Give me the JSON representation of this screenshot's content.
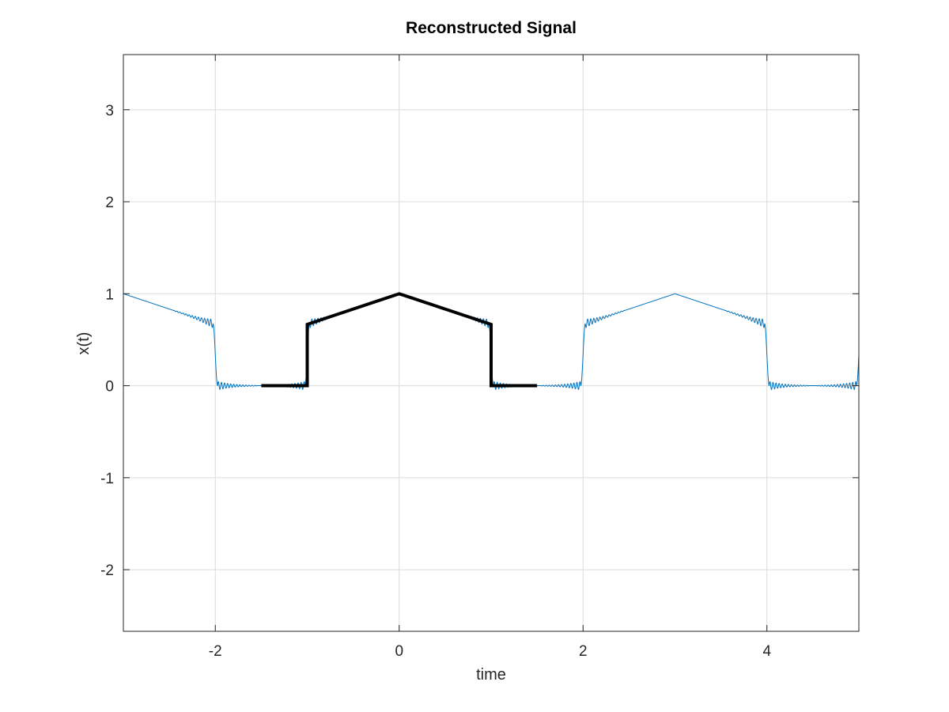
{
  "chart_data": {
    "type": "line",
    "title": "Reconstructed Signal",
    "xlabel": "time",
    "ylabel": "x(t)",
    "xlim": [
      -3,
      5
    ],
    "ylim": [
      -2.67,
      3.6
    ],
    "grid": true,
    "x_ticks": [
      -2,
      0,
      2,
      4
    ],
    "x_tick_labels": [
      "-2",
      "0",
      "2",
      "4"
    ],
    "y_ticks": [
      -2,
      -1,
      0,
      1,
      2,
      3
    ],
    "y_tick_labels": [
      "-2",
      "-1",
      "0",
      "1",
      "2",
      "3"
    ],
    "colors": {
      "reconstruction": "#0072bd",
      "original": "#000000",
      "grid": "#dcdcdc",
      "axes": "#262626"
    },
    "series": [
      {
        "style": "thin-blue-ringing",
        "period": 3,
        "ripple_amplitude": 0.04,
        "one_period": {
          "x": [
            -1.5,
            -1.0,
            -1.0,
            0.0,
            1.0,
            1.0,
            1.5
          ],
          "y": [
            0,
            0,
            0.667,
            1.0,
            0.667,
            0,
            0
          ]
        }
      },
      {
        "style": "thick-black",
        "x": [
          -1.5,
          -1.0,
          -1.0,
          0.0,
          1.0,
          1.0,
          1.5
        ],
        "y": [
          0,
          0,
          0.667,
          1.0,
          0.667,
          0,
          0
        ]
      }
    ]
  }
}
